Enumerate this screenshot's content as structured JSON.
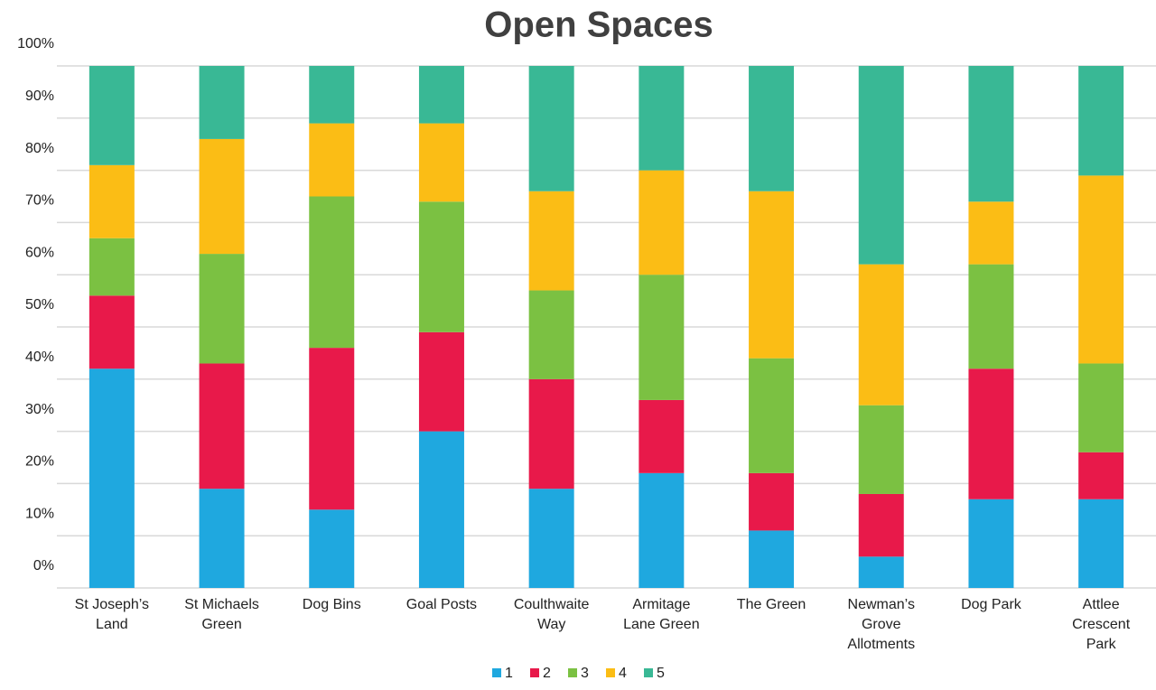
{
  "chart_data": {
    "type": "stacked_bar",
    "title": "Open Spaces",
    "categories": [
      "St Joseph’s Land",
      "St Michaels Green",
      "Dog Bins",
      "Goal Posts",
      "Coulthwaite Way",
      "Armitage Lane Green",
      "The Green",
      "Newman’s Grove Allotments",
      "Dog Park",
      "Attlee Crescent Park"
    ],
    "series": [
      {
        "name": "1",
        "color": "#1fa8df",
        "values": [
          42,
          19,
          15,
          30,
          19,
          22,
          11,
          6,
          17,
          17
        ]
      },
      {
        "name": "2",
        "color": "#e8194a",
        "values": [
          14,
          24,
          31,
          19,
          21,
          14,
          11,
          12,
          25,
          9
        ]
      },
      {
        "name": "3",
        "color": "#7bc142",
        "values": [
          11,
          21,
          29,
          25,
          17,
          24,
          22,
          17,
          20,
          17
        ]
      },
      {
        "name": "4",
        "color": "#fbbd15",
        "values": [
          14,
          22,
          14,
          15,
          19,
          20,
          32,
          27,
          12,
          36
        ]
      },
      {
        "name": "5",
        "color": "#39b895",
        "values": [
          19,
          14,
          11,
          11,
          24,
          20,
          24,
          38,
          26,
          21
        ]
      }
    ],
    "ylim": [
      0,
      100
    ],
    "yticks": [
      {
        "value": 0,
        "label": "0%"
      },
      {
        "value": 10,
        "label": "10%"
      },
      {
        "value": 20,
        "label": "20%"
      },
      {
        "value": 30,
        "label": "30%"
      },
      {
        "value": 40,
        "label": "40%"
      },
      {
        "value": 50,
        "label": "50%"
      },
      {
        "value": 60,
        "label": "60%"
      },
      {
        "value": 70,
        "label": "70%"
      },
      {
        "value": 80,
        "label": "80%"
      },
      {
        "value": 90,
        "label": "90%"
      },
      {
        "value": 100,
        "label": "100%"
      }
    ],
    "grid": true,
    "legend": "bottom"
  }
}
